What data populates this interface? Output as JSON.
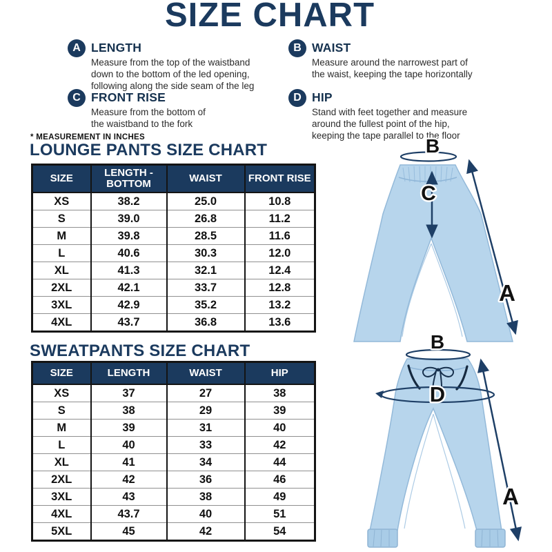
{
  "title": "SIZE CHART",
  "note": "* MEASUREMENT IN INCHES",
  "colors": {
    "navy": "#1b3a5e",
    "arrow_navy": "#1e3f66",
    "table_border": "#141414",
    "row_line": "#8f8f8f",
    "pants_fill": "#b7d5ec",
    "pants_stroke": "#93b9d9",
    "header_text": "#ffffff",
    "body_text": "#111111"
  },
  "legend": {
    "items": [
      {
        "letter": "A",
        "label": "LENGTH",
        "description": "Measure from the top of the waistband\ndown to the bottom of the led opening,\nfollowing along the side seam of the leg"
      },
      {
        "letter": "B",
        "label": "WAIST",
        "description": "Measure around the narrowest part of\nthe waist, keeping the tape horizontally"
      },
      {
        "letter": "C",
        "label": "FRONT RISE",
        "description": "Measure from the bottom of\nthe waistband to the fork"
      },
      {
        "letter": "D",
        "label": "HIP",
        "description": "Stand with feet together and measure\naround the fullest point of the hip,\nkeeping the tape parallel to the floor"
      }
    ]
  },
  "lounge_table": {
    "heading": "LOUNGE PANTS SIZE CHART",
    "columns": [
      "SIZE",
      "LENGTH - BOTTOM",
      "WAIST",
      "FRONT RISE"
    ],
    "rows": [
      [
        "XS",
        "38.2",
        "25.0",
        "10.8"
      ],
      [
        "S",
        "39.0",
        "26.8",
        "11.2"
      ],
      [
        "M",
        "39.8",
        "28.5",
        "11.6"
      ],
      [
        "L",
        "40.6",
        "30.3",
        "12.0"
      ],
      [
        "XL",
        "41.3",
        "32.1",
        "12.4"
      ],
      [
        "2XL",
        "42.1",
        "33.7",
        "12.8"
      ],
      [
        "3XL",
        "42.9",
        "35.2",
        "13.2"
      ],
      [
        "4XL",
        "43.7",
        "36.8",
        "13.6"
      ]
    ]
  },
  "sweatpants_table": {
    "heading": "SWEATPANTS SIZE CHART",
    "columns": [
      "SIZE",
      "LENGTH",
      "WAIST",
      "HIP"
    ],
    "rows": [
      [
        "XS",
        "37",
        "27",
        "38"
      ],
      [
        "S",
        "38",
        "29",
        "39"
      ],
      [
        "M",
        "39",
        "31",
        "40"
      ],
      [
        "L",
        "40",
        "33",
        "42"
      ],
      [
        "XL",
        "41",
        "34",
        "44"
      ],
      [
        "2XL",
        "42",
        "36",
        "46"
      ],
      [
        "3XL",
        "43",
        "38",
        "49"
      ],
      [
        "4XL",
        "43.7",
        "40",
        "51"
      ],
      [
        "5XL",
        "45",
        "42",
        "54"
      ]
    ]
  },
  "illustrations": {
    "lounge_pants": {
      "waist_label": "B",
      "front_rise_label": "C",
      "length_label": "A"
    },
    "sweatpants": {
      "waist_label": "B",
      "hip_label": "D",
      "length_label": "A"
    }
  }
}
